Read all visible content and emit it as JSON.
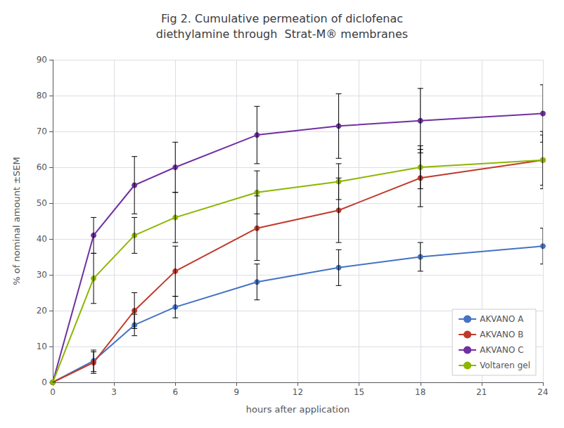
{
  "chart_data": {
    "type": "line",
    "title": "Fig 2. Cumulative permeation of diclofenac\ndiethylamine through  Strat-M® membranes",
    "xlabel": "hours after application",
    "ylabel": "% of nominal amount ±SEM",
    "xlim": [
      0,
      24
    ],
    "ylim": [
      0,
      90
    ],
    "xticks": [
      0,
      3,
      6,
      9,
      12,
      15,
      18,
      21,
      24
    ],
    "yticks": [
      0,
      10,
      20,
      30,
      40,
      50,
      60,
      70,
      80,
      90
    ],
    "grid": true,
    "legend": "lower right",
    "marker": "circle",
    "x": [
      0,
      2,
      4,
      6,
      10,
      14,
      18,
      24
    ],
    "series": [
      {
        "name": "AKVANO A",
        "color": "#4472c4",
        "values": [
          0,
          6,
          16,
          21,
          28,
          32,
          35,
          38
        ],
        "yerr": [
          0,
          3,
          3,
          3,
          5,
          5,
          4,
          5
        ]
      },
      {
        "name": "AKVANO B",
        "color": "#c0392b",
        "values": [
          0,
          5.5,
          20,
          31,
          43,
          48,
          57,
          62
        ],
        "yerr": [
          0,
          3,
          5,
          7,
          9,
          9,
          8,
          8
        ]
      },
      {
        "name": "AKVANO C",
        "color": "#7030a0",
        "values": [
          0,
          41,
          55,
          60,
          69,
          71.5,
          73,
          75
        ],
        "yerr": [
          0,
          5,
          8,
          7,
          8,
          9,
          9,
          8
        ]
      },
      {
        "name": "Voltaren gel",
        "color": "#8db600",
        "values": [
          0,
          29,
          41,
          46,
          53,
          56,
          60,
          62
        ],
        "yerr": [
          0,
          7,
          5,
          7,
          6,
          5,
          6,
          7
        ]
      }
    ]
  }
}
